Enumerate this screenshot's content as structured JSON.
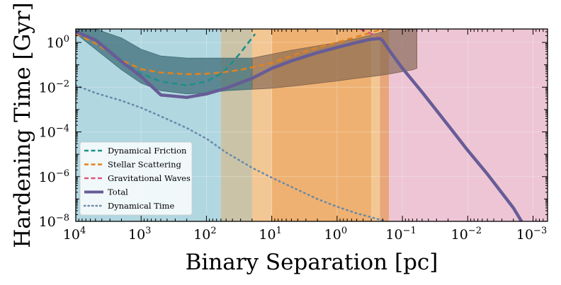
{
  "chart_data": {
    "type": "line",
    "xscale": "log",
    "yscale": "log",
    "x_inverted": true,
    "xlabel": "Binary Separation [pc]",
    "ylabel": "Hardening Time [Gyr]",
    "xlim": [
      10000,
      0.0006
    ],
    "ylim": [
      1e-08,
      4
    ],
    "x_ticks": [
      {
        "value": 10000,
        "base": "10",
        "exp": "4"
      },
      {
        "value": 1000,
        "base": "10",
        "exp": "3"
      },
      {
        "value": 100,
        "base": "10",
        "exp": "2"
      },
      {
        "value": 10,
        "base": "10",
        "exp": "1"
      },
      {
        "value": 1,
        "base": "10",
        "exp": "0"
      },
      {
        "value": 0.1,
        "base": "10",
        "exp": "−1"
      },
      {
        "value": 0.01,
        "base": "10",
        "exp": "−2"
      },
      {
        "value": 0.001,
        "base": "10",
        "exp": "−3"
      }
    ],
    "y_ticks": [
      {
        "value": 1e-08,
        "base": "10",
        "exp": "−8"
      },
      {
        "value": 1e-06,
        "base": "10",
        "exp": "−6"
      },
      {
        "value": 0.0001,
        "base": "10",
        "exp": "−4"
      },
      {
        "value": 0.01,
        "base": "10",
        "exp": "−2"
      },
      {
        "value": 1,
        "base": "10",
        "exp": "0"
      }
    ],
    "regions": [
      {
        "name": "dynamical-friction",
        "x_from": 10000,
        "x_to": 60,
        "color": "#a9d3de",
        "opacity": 0.9
      },
      {
        "name": "transition-1",
        "x_from": 60,
        "x_to": 20,
        "color": "#c4bd9d",
        "opacity": 0.9
      },
      {
        "name": "stellar-scattering-light",
        "x_from": 20,
        "x_to": 10,
        "color": "#f2c188",
        "opacity": 0.9
      },
      {
        "name": "stellar-scattering",
        "x_from": 10,
        "x_to": 0.3,
        "color": "#eda862",
        "opacity": 0.9
      },
      {
        "name": "transition-2",
        "x_from": 0.3,
        "x_to": 0.22,
        "color": "#f2c188",
        "opacity": 0.9
      },
      {
        "name": "transition-3",
        "x_from": 0.22,
        "x_to": 0.16,
        "color": "#e69c6c",
        "opacity": 0.9
      },
      {
        "name": "gravitational-waves",
        "x_from": 0.16,
        "x_to": 0.0006,
        "color": "#ebbfcf",
        "opacity": 0.9
      }
    ],
    "bands": [
      {
        "name": "dynamical-friction-band",
        "color": "#3f6e78",
        "opacity": 0.75,
        "x": [
          10000,
          5000,
          2000,
          1000,
          500,
          200,
          100,
          50,
          20
        ],
        "y_low": [
          2.5,
          0.5,
          0.06,
          0.015,
          0.007,
          0.005,
          0.0055,
          0.007,
          0.008
        ],
        "y_high": [
          4,
          4,
          1.6,
          0.5,
          0.25,
          0.2,
          0.2,
          0.2,
          0.2
        ]
      },
      {
        "name": "stellar-scattering-band",
        "color": "#7f6450",
        "opacity": 0.65,
        "x": [
          20,
          10,
          5,
          2,
          1,
          0.5,
          0.3,
          0.2,
          0.15,
          0.1,
          0.07,
          0.06
        ],
        "y_low": [
          0.008,
          0.009,
          0.011,
          0.015,
          0.019,
          0.025,
          0.03,
          0.035,
          0.04,
          0.05,
          0.06,
          0.07
        ],
        "y_high": [
          0.2,
          0.3,
          0.45,
          0.7,
          1.0,
          1.5,
          2.2,
          3,
          4,
          4,
          4,
          4
        ]
      }
    ],
    "series": [
      {
        "name": "Dynamical Friction",
        "style": "dashed",
        "color": "#1f8f8b",
        "x": [
          10000,
          5000,
          2000,
          1000,
          500,
          200,
          100,
          60,
          50,
          40,
          30,
          25,
          20,
          18
        ],
        "y": [
          3,
          1.3,
          0.14,
          0.04,
          0.018,
          0.012,
          0.018,
          0.04,
          0.065,
          0.13,
          0.35,
          0.7,
          1.6,
          2.4
        ]
      },
      {
        "name": "Stellar Scattering",
        "style": "dashed",
        "color": "#e0821e",
        "x": [
          10000,
          5000,
          2000,
          1000,
          500,
          200,
          100,
          60,
          30,
          10,
          5,
          2,
          1,
          0.5,
          0.3,
          0.2
        ],
        "y": [
          2.5,
          0.9,
          0.16,
          0.065,
          0.045,
          0.038,
          0.04,
          0.045,
          0.06,
          0.12,
          0.25,
          0.6,
          1.0,
          1.8,
          2.8,
          4
        ]
      },
      {
        "name": "Gravitational Waves",
        "style": "dashed",
        "color": "#d9577a",
        "x": [
          0.45,
          0.35,
          0.27,
          0.24,
          0.22
        ],
        "y": [
          4,
          3,
          2.2,
          1.8,
          1.5
        ]
      },
      {
        "name": "Total",
        "style": "solid",
        "color": "#675c96",
        "x": [
          10000,
          5000,
          2000,
          1000,
          500,
          200,
          100,
          50,
          20,
          10,
          5,
          2,
          1,
          0.5,
          0.3,
          0.22,
          0.2,
          0.15,
          0.1,
          0.05,
          0.02,
          0.01,
          0.005,
          0.002,
          0.0015
        ],
        "y": [
          3,
          1.3,
          0.14,
          0.03,
          0.0045,
          0.0035,
          0.005,
          0.009,
          0.025,
          0.07,
          0.15,
          0.35,
          0.6,
          1.0,
          1.4,
          1.5,
          1.2,
          0.35,
          0.07,
          0.006,
          0.0002,
          1.5e-05,
          1.3e-06,
          4e-08,
          1e-08
        ]
      },
      {
        "name": "Dynamical Time",
        "style": "dotted",
        "color": "#6a8aa8",
        "x": [
          10000,
          5000,
          2000,
          1000,
          500,
          200,
          100,
          50,
          20,
          10,
          5,
          2,
          1,
          0.5,
          0.2,
          0.13
        ],
        "y": [
          0.012,
          0.0055,
          0.0025,
          0.0012,
          0.0005,
          0.00015,
          5e-05,
          1.2e-05,
          2.5e-06,
          9e-07,
          3.5e-07,
          1e-07,
          4.5e-08,
          2.3e-08,
          1.1e-08,
          7e-09
        ]
      }
    ],
    "legend": {
      "position": "lower-left",
      "entries": [
        {
          "label": "Dynamical Friction",
          "style": "dashed",
          "color": "#1f8f8b"
        },
        {
          "label": "Stellar Scattering",
          "style": "dashed",
          "color": "#e0821e"
        },
        {
          "label": "Gravitational Waves",
          "style": "dashed",
          "color": "#d9577a"
        },
        {
          "label": "Total",
          "style": "solid",
          "color": "#675c96"
        },
        {
          "label": "Dynamical Time",
          "style": "dotted",
          "color": "#6a8aa8"
        }
      ]
    }
  }
}
